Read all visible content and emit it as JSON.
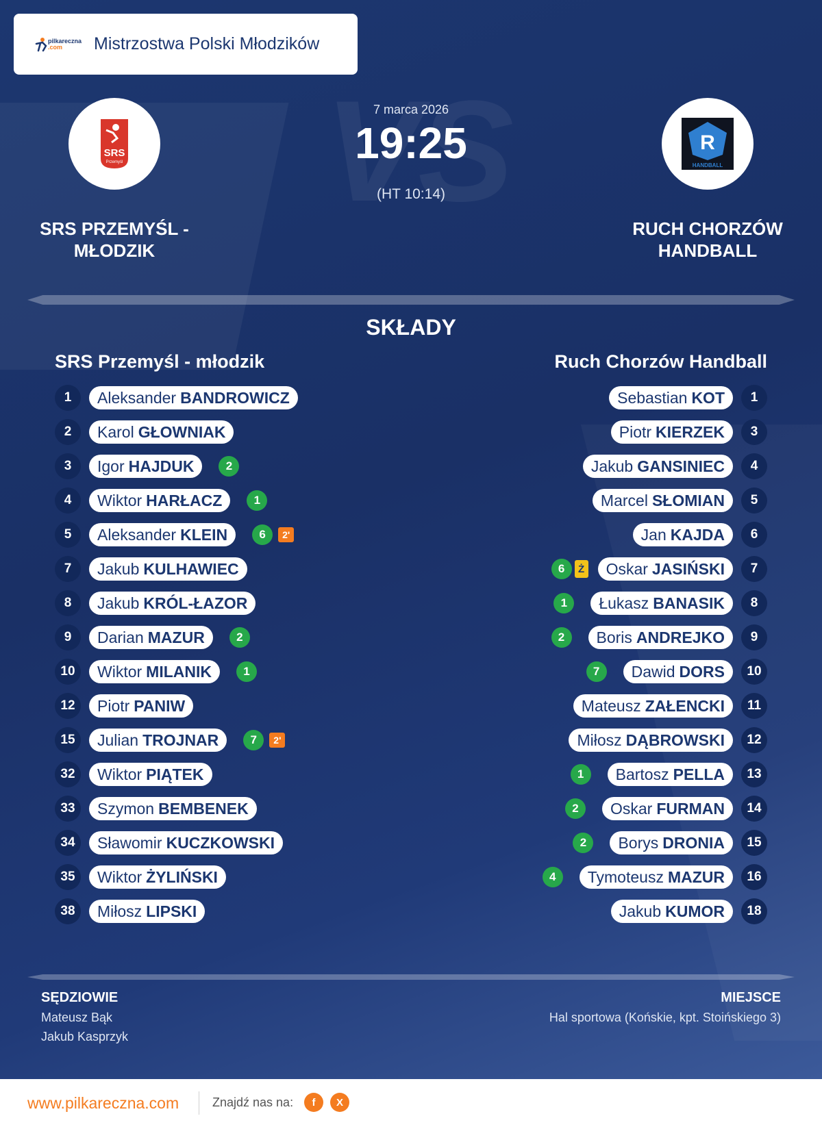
{
  "competition": {
    "title": "Mistrzostwa Polski Młodzików",
    "brand_logo_text": "pilkareczna",
    "brand_logo_suffix": ".com"
  },
  "match": {
    "date": "7 marca 2026",
    "score": "19:25",
    "halftime": "(HT 10:14)",
    "vs_watermark": "VS",
    "home_name": "SRS PRZEMYŚL - MŁODZIK",
    "away_name": "RUCH CHORZÓW HANDBALL",
    "home_logo_text": "SRS",
    "home_logo_sub": "Przemyśl",
    "away_logo_text": "R",
    "away_logo_sub": "HANDBALL"
  },
  "lineups": {
    "title": "SKŁADY",
    "home_team": "SRS Przemyśl - młodzik",
    "away_team": "Ruch Chorzów Handball",
    "home": [
      {
        "number": "1",
        "first": "Aleksander",
        "last": "BANDROWICZ",
        "goals": "",
        "penalty": "",
        "card": ""
      },
      {
        "number": "2",
        "first": "Karol",
        "last": "GŁOWNIAK",
        "goals": "",
        "penalty": "",
        "card": ""
      },
      {
        "number": "3",
        "first": "Igor",
        "last": "HAJDUK",
        "goals": "2",
        "penalty": "",
        "card": ""
      },
      {
        "number": "4",
        "first": "Wiktor",
        "last": "HARŁACZ",
        "goals": "1",
        "penalty": "",
        "card": ""
      },
      {
        "number": "5",
        "first": "Aleksander",
        "last": "KLEIN",
        "goals": "6",
        "penalty": "2'",
        "card": ""
      },
      {
        "number": "7",
        "first": "Jakub",
        "last": "KULHAWIEC",
        "goals": "",
        "penalty": "",
        "card": ""
      },
      {
        "number": "8",
        "first": "Jakub",
        "last": "KRÓL-ŁAZOR",
        "goals": "",
        "penalty": "",
        "card": ""
      },
      {
        "number": "9",
        "first": "Darian",
        "last": "MAZUR",
        "goals": "2",
        "penalty": "",
        "card": ""
      },
      {
        "number": "10",
        "first": "Wiktor",
        "last": "MILANIK",
        "goals": "1",
        "penalty": "",
        "card": ""
      },
      {
        "number": "12",
        "first": "Piotr",
        "last": "PANIW",
        "goals": "",
        "penalty": "",
        "card": ""
      },
      {
        "number": "15",
        "first": "Julian",
        "last": "TROJNAR",
        "goals": "7",
        "penalty": "2'",
        "card": ""
      },
      {
        "number": "32",
        "first": "Wiktor",
        "last": "PIĄTEK",
        "goals": "",
        "penalty": "",
        "card": ""
      },
      {
        "number": "33",
        "first": "Szymon",
        "last": "BEMBENEK",
        "goals": "",
        "penalty": "",
        "card": ""
      },
      {
        "number": "34",
        "first": "Sławomir",
        "last": "KUCZKOWSKI",
        "goals": "",
        "penalty": "",
        "card": ""
      },
      {
        "number": "35",
        "first": "Wiktor",
        "last": "ŻYLIŃSKI",
        "goals": "",
        "penalty": "",
        "card": ""
      },
      {
        "number": "38",
        "first": "Miłosz",
        "last": "LIPSKI",
        "goals": "",
        "penalty": "",
        "card": ""
      }
    ],
    "away": [
      {
        "number": "1",
        "first": "Sebastian",
        "last": "KOT",
        "goals": "",
        "penalty": "",
        "card": ""
      },
      {
        "number": "3",
        "first": "Piotr",
        "last": "KIERZEK",
        "goals": "",
        "penalty": "",
        "card": ""
      },
      {
        "number": "4",
        "first": "Jakub",
        "last": "GANSINIEC",
        "goals": "",
        "penalty": "",
        "card": ""
      },
      {
        "number": "5",
        "first": "Marcel",
        "last": "SŁOMIAN",
        "goals": "",
        "penalty": "",
        "card": ""
      },
      {
        "number": "6",
        "first": "Jan",
        "last": "KAJDA",
        "goals": "",
        "penalty": "",
        "card": ""
      },
      {
        "number": "7",
        "first": "Oskar",
        "last": "JASIŃSKI",
        "goals": "6",
        "penalty": "",
        "card": "Ż"
      },
      {
        "number": "8",
        "first": "Łukasz",
        "last": "BANASIK",
        "goals": "1",
        "penalty": "",
        "card": ""
      },
      {
        "number": "9",
        "first": "Boris",
        "last": "ANDREJKO",
        "goals": "2",
        "penalty": "",
        "card": ""
      },
      {
        "number": "10",
        "first": "Dawid",
        "last": "DORS",
        "goals": "7",
        "penalty": "",
        "card": ""
      },
      {
        "number": "11",
        "first": "Mateusz",
        "last": "ZAŁENCKI",
        "goals": "",
        "penalty": "",
        "card": ""
      },
      {
        "number": "12",
        "first": "Miłosz",
        "last": "DĄBROWSKI",
        "goals": "",
        "penalty": "",
        "card": ""
      },
      {
        "number": "13",
        "first": "Bartosz",
        "last": "PELLA",
        "goals": "1",
        "penalty": "",
        "card": ""
      },
      {
        "number": "14",
        "first": "Oskar",
        "last": "FURMAN",
        "goals": "2",
        "penalty": "",
        "card": ""
      },
      {
        "number": "15",
        "first": "Borys",
        "last": "DRONIA",
        "goals": "2",
        "penalty": "",
        "card": ""
      },
      {
        "number": "16",
        "first": "Tymoteusz",
        "last": "MAZUR",
        "goals": "4",
        "penalty": "",
        "card": ""
      },
      {
        "number": "18",
        "first": "Jakub",
        "last": "KUMOR",
        "goals": "",
        "penalty": "",
        "card": ""
      }
    ]
  },
  "officials": {
    "label": "SĘDZIOWIE",
    "names": [
      "Mateusz Bąk",
      "Jakub Kasprzyk"
    ]
  },
  "venue": {
    "label": "MIEJSCE",
    "name": "Hal sportowa (Końskie, kpt. Stoińskiego 3)"
  },
  "footer": {
    "url": "www.pilkareczna.com",
    "find_us": "Znajdź nas na:",
    "facebook": "f",
    "x": "X"
  },
  "colors": {
    "background": "#1c3770",
    "accent": "#f47c20",
    "goal_badge": "#27a84a",
    "yellow_card": "#f3c21a"
  }
}
